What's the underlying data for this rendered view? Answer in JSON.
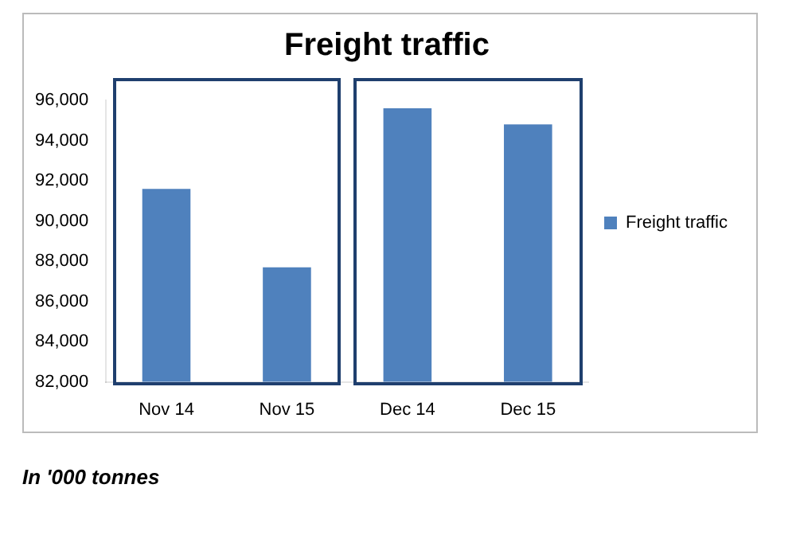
{
  "chart_data": {
    "type": "bar",
    "title": "Freight traffic",
    "categories": [
      "Nov 14",
      "Nov 15",
      "Dec 14",
      "Dec 15"
    ],
    "series": [
      {
        "name": "Freight traffic",
        "color": "#4f81bd",
        "values": [
          91600,
          87700,
          95600,
          94800
        ]
      }
    ],
    "ylim": [
      82000,
      96000
    ],
    "yticks": [
      {
        "value": 82000,
        "label": "82,000"
      },
      {
        "value": 84000,
        "label": "84,000"
      },
      {
        "value": 86000,
        "label": "86,000"
      },
      {
        "value": 88000,
        "label": "88,000"
      },
      {
        "value": 90000,
        "label": "90,000"
      },
      {
        "value": 92000,
        "label": "92,000"
      },
      {
        "value": 94000,
        "label": "94,000"
      },
      {
        "value": 96000,
        "label": "96,000"
      }
    ],
    "grid": false,
    "legend": "right",
    "annotations": [
      "In '000 tonnes"
    ]
  }
}
